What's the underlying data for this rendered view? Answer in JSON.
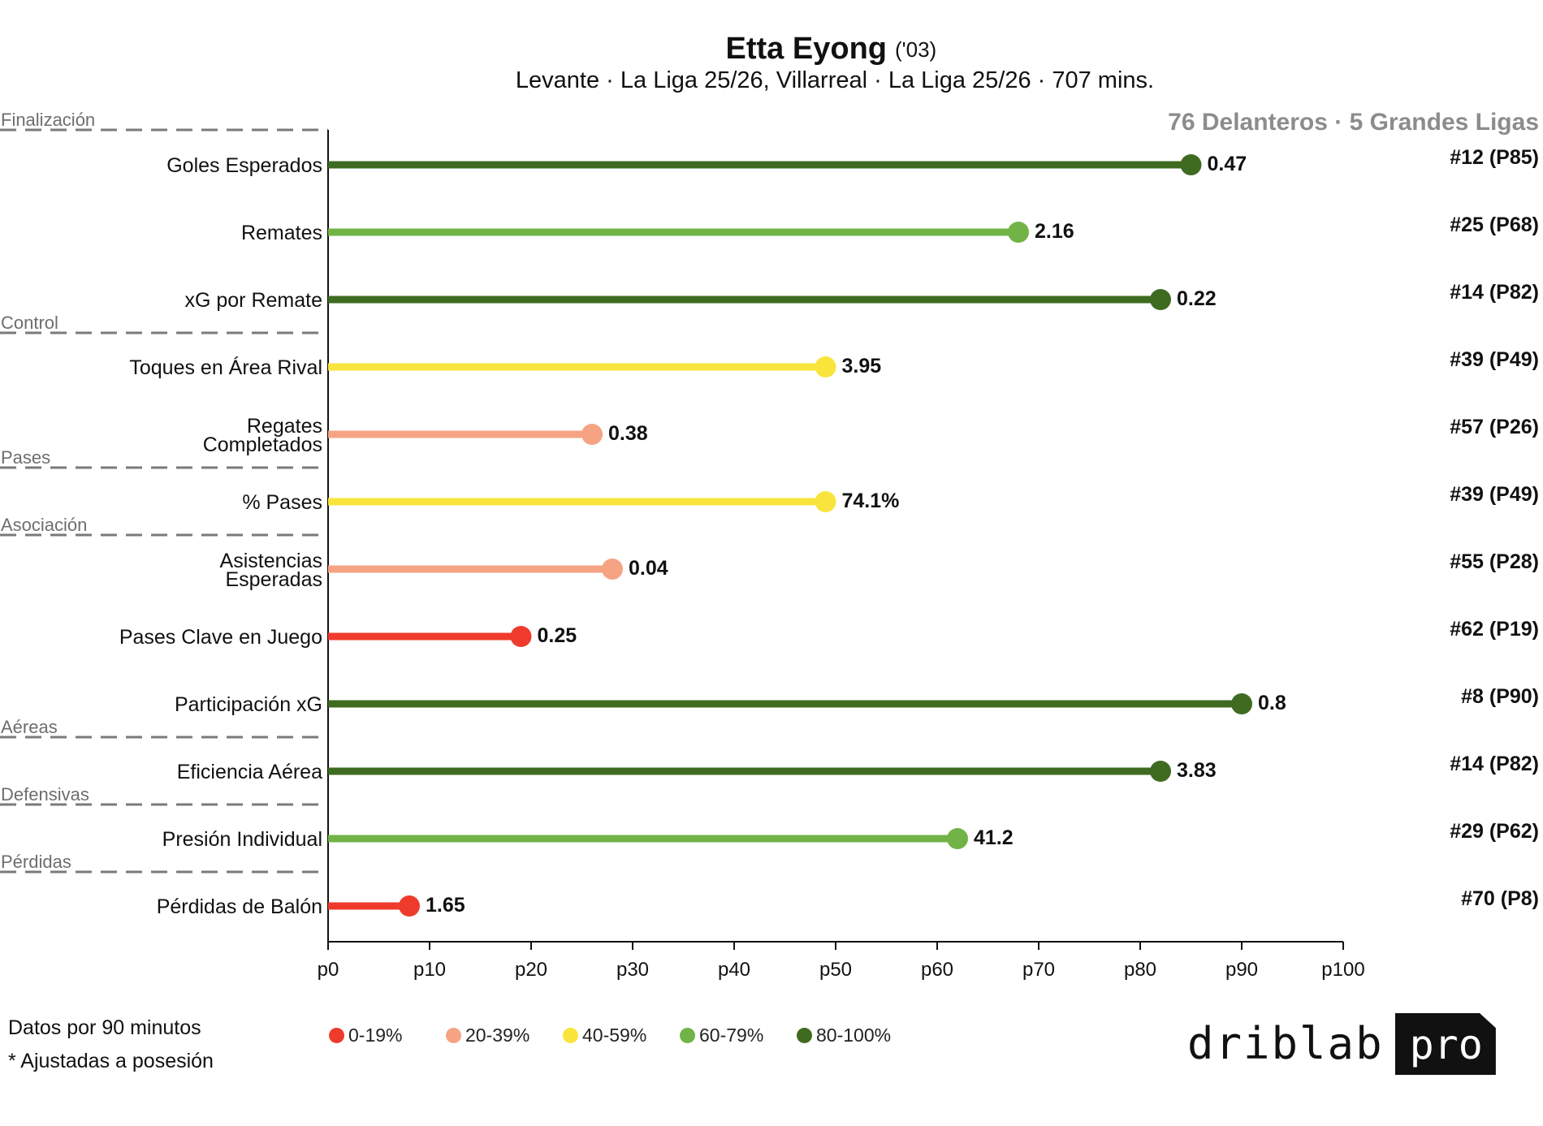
{
  "header": {
    "player_name": "Etta Eyong",
    "player_year": "('03)",
    "subtitle": "Levante · La Liga 25/26, Villarreal · La Liga 25/26 · 707 mins.",
    "comparison": "76 Delanteros · 5 Grandes Ligas"
  },
  "chart_data": {
    "type": "lollipop",
    "x_axis": {
      "range": [
        0,
        100
      ],
      "ticks": [
        "p0",
        "p10",
        "p20",
        "p30",
        "p40",
        "p50",
        "p60",
        "p70",
        "p80",
        "p90",
        "p100"
      ]
    },
    "sections": [
      {
        "name": "Finalización",
        "start_index": 0
      },
      {
        "name": "Control",
        "start_index": 3
      },
      {
        "name": "Pases",
        "start_index": 5
      },
      {
        "name": "Asociación",
        "start_index": 6
      },
      {
        "name": "Aéreas",
        "start_index": 9
      },
      {
        "name": "Defensivas",
        "start_index": 10
      },
      {
        "name": "Pérdidas",
        "start_index": 11
      }
    ],
    "metrics": [
      {
        "label": [
          "Goles Esperados"
        ],
        "percentile": 85,
        "value": "0.47",
        "rank": "#12 (P85)",
        "color": "#3f6b21"
      },
      {
        "label": [
          "Remates"
        ],
        "percentile": 68,
        "value": "2.16",
        "rank": "#25 (P68)",
        "color": "#72b347"
      },
      {
        "label": [
          "xG por Remate"
        ],
        "percentile": 82,
        "value": "0.22",
        "rank": "#14 (P82)",
        "color": "#3f6b21"
      },
      {
        "label": [
          "Toques en Área Rival"
        ],
        "percentile": 49,
        "value": "3.95",
        "rank": "#39 (P49)",
        "color": "#f9e43c"
      },
      {
        "label": [
          "Regates",
          "Completados"
        ],
        "percentile": 26,
        "value": "0.38",
        "rank": "#57 (P26)",
        "color": "#f6a383"
      },
      {
        "label": [
          "% Pases"
        ],
        "percentile": 49,
        "value": "74.1%",
        "rank": "#39 (P49)",
        "color": "#f9e43c"
      },
      {
        "label": [
          "Asistencias",
          "Esperadas"
        ],
        "percentile": 28,
        "value": "0.04",
        "rank": "#55 (P28)",
        "color": "#f6a383"
      },
      {
        "label": [
          "Pases Clave en Juego"
        ],
        "percentile": 19,
        "value": "0.25",
        "rank": "#62 (P19)",
        "color": "#ef3b2c"
      },
      {
        "label": [
          "Participación xG"
        ],
        "percentile": 90,
        "value": "0.8",
        "rank": "#8 (P90)",
        "color": "#3f6b21"
      },
      {
        "label": [
          "Eficiencia Aérea"
        ],
        "percentile": 82,
        "value": "3.83",
        "rank": "#14 (P82)",
        "color": "#3f6b21"
      },
      {
        "label": [
          "Presión Individual"
        ],
        "percentile": 62,
        "value": "41.2",
        "rank": "#29 (P62)",
        "color": "#72b347"
      },
      {
        "label": [
          "Pérdidas de Balón"
        ],
        "percentile": 8,
        "value": "1.65",
        "rank": "#70 (P8)",
        "color": "#ef3b2c"
      }
    ]
  },
  "legend": [
    {
      "label": "0-19%",
      "color": "#ef3b2c"
    },
    {
      "label": "20-39%",
      "color": "#f6a383"
    },
    {
      "label": "40-59%",
      "color": "#f9e43c"
    },
    {
      "label": "60-79%",
      "color": "#72b347"
    },
    {
      "label": "80-100%",
      "color": "#3f6b21"
    }
  ],
  "footnotes": {
    "line1": "Datos por 90 minutos",
    "line2": "* Ajustadas a posesión"
  },
  "logo": {
    "brand": "driblab",
    "badge": "pro"
  }
}
